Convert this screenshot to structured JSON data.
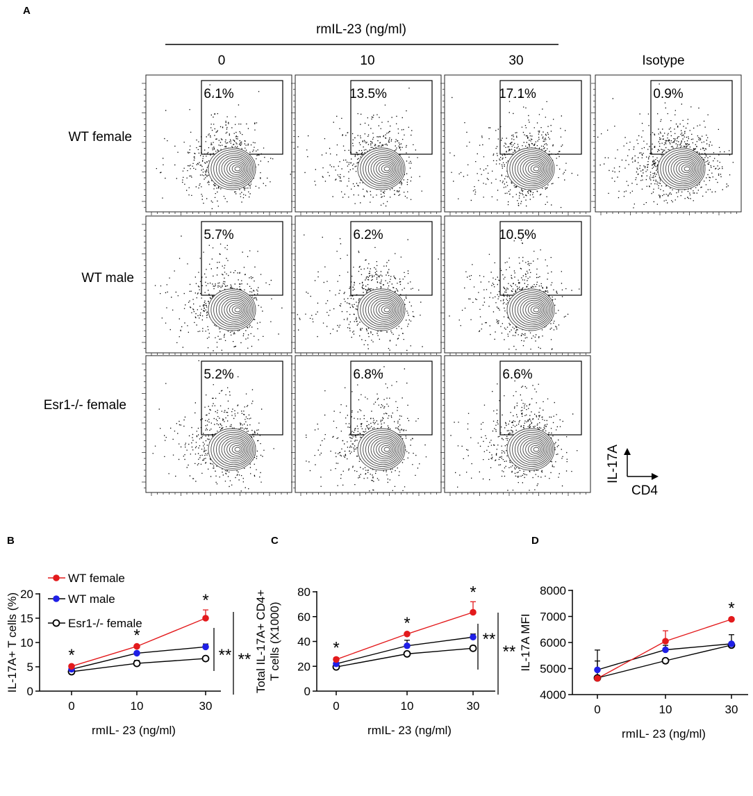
{
  "panel_labels": {
    "a": "A",
    "b": "B",
    "c": "C",
    "d": "D"
  },
  "flow": {
    "header": "rmIL-23 (ng/ml)",
    "columns": [
      "0",
      "10",
      "30",
      "Isotype"
    ],
    "rows": [
      "WT female",
      "WT male",
      "Esr1-/- female"
    ],
    "percentages": [
      [
        "6.1%",
        "13.5%",
        "17.1%",
        "0.9%"
      ],
      [
        "5.7%",
        "6.2%",
        "10.5%",
        null
      ],
      [
        "5.2%",
        "6.8%",
        "6.6%",
        null
      ]
    ],
    "axis_y_label": "IL-17A",
    "axis_x_label": "CD4"
  },
  "colors": {
    "wt_female": "#e31a1c",
    "wt_male": "#1f1fe6",
    "esr1_female": "#000000"
  },
  "chart_data": [
    {
      "id": "B",
      "type": "line",
      "categories": [
        "0",
        "10",
        "30"
      ],
      "ylabel": "IL-17A+ T cells (%)",
      "xlabel": "rmIL- 23 (ng/ml)",
      "ylim": [
        0,
        20
      ],
      "yticks": [
        "0",
        "5",
        "10",
        "15",
        "20"
      ],
      "series": [
        {
          "name": "WT female",
          "values": [
            5.1,
            9.2,
            15.0
          ],
          "errors": [
            0.3,
            0.3,
            1.7
          ]
        },
        {
          "name": "WT male",
          "values": [
            4.5,
            7.8,
            9.1
          ],
          "errors": [
            0.2,
            0.3,
            0.6
          ]
        },
        {
          "name": "Esr1-/- female",
          "values": [
            4.0,
            5.7,
            6.7
          ],
          "errors": [
            0.2,
            0.6,
            0.2
          ]
        }
      ],
      "legend": [
        "WT female",
        "WT male",
        "Esr1-/- female"
      ],
      "significance": [
        {
          "category": "0",
          "label": "*"
        },
        {
          "category": "10",
          "label": "*"
        },
        {
          "category": "30",
          "label": "*"
        }
      ],
      "brackets": [
        "**",
        "**"
      ]
    },
    {
      "id": "C",
      "type": "line",
      "categories": [
        "0",
        "10",
        "30"
      ],
      "ylabel_lines": [
        "Total IL-17A+ CD4+",
        "T cells (X1000)"
      ],
      "xlabel": "rmIL- 23 (ng/ml)",
      "ylim": [
        0,
        80
      ],
      "yticks": [
        "0",
        "20",
        "40",
        "60",
        "80"
      ],
      "series": [
        {
          "name": "WT female",
          "values": [
            25.5,
            46,
            63.5
          ],
          "errors": [
            1.5,
            1.0,
            8.5
          ]
        },
        {
          "name": "WT male",
          "values": [
            22,
            36.5,
            43.5
          ],
          "errors": [
            1.0,
            4.5,
            2.5
          ]
        },
        {
          "name": "Esr1-/- female",
          "values": [
            19.5,
            30,
            34.5
          ],
          "errors": [
            0.5,
            1.5,
            2.0
          ]
        }
      ],
      "significance": [
        {
          "category": "0",
          "label": "*"
        },
        {
          "category": "10",
          "label": "*"
        },
        {
          "category": "30",
          "label": "*"
        }
      ],
      "brackets": [
        "**",
        "**"
      ]
    },
    {
      "id": "D",
      "type": "line",
      "categories": [
        "0",
        "10",
        "30"
      ],
      "ylabel": "IL-17A MFI",
      "xlabel": "rmIL- 23 (ng/ml)",
      "ylim": [
        4000,
        8000
      ],
      "yticks": [
        "4000",
        "5000",
        "6000",
        "7000",
        "8000"
      ],
      "series": [
        {
          "name": "WT female",
          "values": [
            4620,
            6050,
            6890
          ],
          "errors": [
            40,
            400,
            60
          ]
        },
        {
          "name": "WT male",
          "values": [
            4950,
            5720,
            5950
          ],
          "errors": [
            760,
            170,
            350
          ]
        },
        {
          "name": "Esr1-/- female",
          "values": [
            4640,
            5300,
            5900
          ],
          "errors": [
            650,
            40,
            30
          ]
        }
      ],
      "significance": [
        {
          "category": "30",
          "label": "*"
        }
      ]
    }
  ]
}
